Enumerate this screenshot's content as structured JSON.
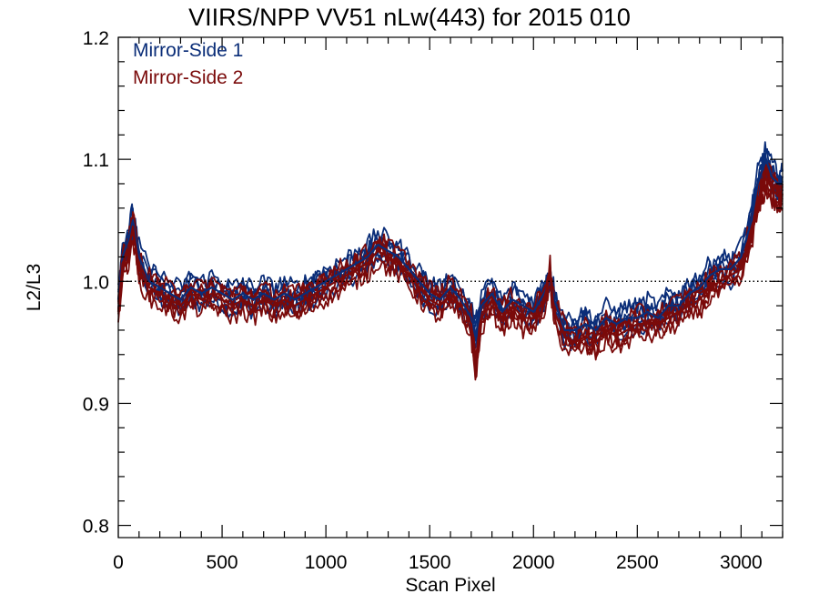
{
  "chart_data": {
    "type": "line",
    "title": "VIIRS/NPP VV51 nLw(443) for 2015 010",
    "xlabel": "Scan Pixel",
    "ylabel": "L2/L3",
    "xlim": [
      0,
      3200
    ],
    "ylim": [
      0.79,
      1.2
    ],
    "xticks": [
      "0",
      "500",
      "1000",
      "1500",
      "2000",
      "2500",
      "3000"
    ],
    "yticks": [
      "0.8",
      "0.9",
      "1.0",
      "1.1",
      "1.2"
    ],
    "reference_line": {
      "y": 1.0,
      "style": "dotted"
    },
    "grid": false,
    "legend_position": "top-left",
    "series": [
      {
        "name": "Mirror-Side 1",
        "color": "#0a2d78",
        "x": [
          0,
          20,
          50,
          70,
          100,
          150,
          200,
          250,
          300,
          350,
          400,
          450,
          500,
          550,
          600,
          650,
          700,
          750,
          800,
          850,
          900,
          950,
          1000,
          1050,
          1100,
          1150,
          1200,
          1250,
          1300,
          1350,
          1400,
          1450,
          1500,
          1550,
          1600,
          1650,
          1700,
          1720,
          1750,
          1800,
          1850,
          1900,
          1950,
          2000,
          2050,
          2080,
          2100,
          2150,
          2200,
          2250,
          2300,
          2350,
          2400,
          2450,
          2500,
          2550,
          2600,
          2650,
          2700,
          2750,
          2800,
          2850,
          2900,
          2950,
          3000,
          3050,
          3080,
          3100,
          3120,
          3150,
          3180,
          3200
        ],
        "values": [
          0.985,
          1.02,
          1.035,
          1.05,
          1.02,
          1.0,
          0.995,
          0.99,
          0.985,
          0.995,
          0.99,
          0.995,
          0.99,
          0.985,
          0.99,
          0.985,
          0.99,
          0.985,
          0.99,
          0.985,
          0.99,
          0.995,
          1.0,
          1.005,
          1.01,
          1.015,
          1.02,
          1.03,
          1.025,
          1.02,
          1.01,
          1.0,
          0.99,
          0.985,
          0.995,
          0.985,
          0.97,
          0.955,
          0.98,
          0.99,
          0.975,
          0.985,
          0.98,
          0.975,
          0.99,
          1.0,
          0.985,
          0.96,
          0.96,
          0.965,
          0.96,
          0.97,
          0.965,
          0.97,
          0.97,
          0.975,
          0.97,
          0.98,
          0.98,
          0.99,
          0.995,
          1.005,
          1.01,
          1.01,
          1.02,
          1.05,
          1.08,
          1.09,
          1.1,
          1.085,
          1.08,
          1.08
        ]
      },
      {
        "name": "Mirror-Side 2",
        "color": "#7a0a0a",
        "x": [
          0,
          20,
          50,
          70,
          100,
          150,
          200,
          250,
          300,
          350,
          400,
          450,
          500,
          550,
          600,
          650,
          700,
          750,
          800,
          850,
          900,
          950,
          1000,
          1050,
          1100,
          1150,
          1200,
          1250,
          1300,
          1350,
          1400,
          1450,
          1500,
          1550,
          1600,
          1650,
          1700,
          1720,
          1750,
          1800,
          1850,
          1900,
          1950,
          2000,
          2050,
          2080,
          2100,
          2150,
          2200,
          2250,
          2300,
          2350,
          2400,
          2450,
          2500,
          2550,
          2600,
          2650,
          2700,
          2750,
          2800,
          2850,
          2900,
          2950,
          3000,
          3050,
          3080,
          3100,
          3120,
          3150,
          3180,
          3200
        ],
        "values": [
          0.975,
          1.015,
          1.025,
          1.045,
          1.01,
          0.995,
          0.99,
          0.985,
          0.98,
          0.99,
          0.985,
          0.99,
          0.985,
          0.98,
          0.985,
          0.98,
          0.985,
          0.98,
          0.985,
          0.98,
          0.985,
          0.99,
          0.995,
          1.0,
          1.005,
          1.01,
          1.015,
          1.025,
          1.02,
          1.015,
          1.005,
          0.995,
          0.985,
          0.98,
          0.99,
          0.98,
          0.965,
          0.93,
          0.97,
          0.985,
          0.97,
          0.98,
          0.97,
          0.97,
          0.985,
          1.005,
          0.975,
          0.955,
          0.95,
          0.955,
          0.95,
          0.96,
          0.955,
          0.96,
          0.965,
          0.965,
          0.965,
          0.97,
          0.975,
          0.98,
          0.985,
          0.995,
          1.0,
          1.005,
          1.01,
          1.04,
          1.065,
          1.075,
          1.085,
          1.075,
          1.07,
          1.07
        ]
      }
    ]
  }
}
